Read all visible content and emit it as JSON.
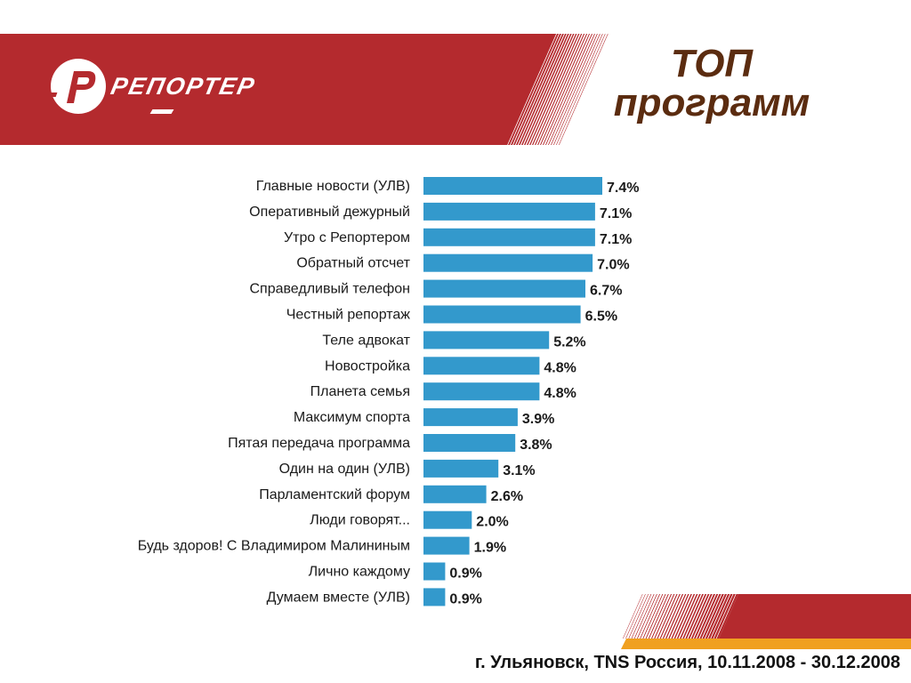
{
  "header": {
    "logo_text": "РЕПОРТЕР",
    "logo_icon": "reporter-r-logo-icon",
    "title_line1": "ТОП",
    "title_line2": "программ"
  },
  "colors": {
    "banner_red": "#b42a2e",
    "bar_blue": "#3399cc",
    "title_brown": "#5b2c10",
    "accent_orange": "#f0a020"
  },
  "chart_data": {
    "type": "bar",
    "orientation": "horizontal",
    "unit": "%",
    "categories": [
      "Главные новости (УЛВ)",
      "Оперативный дежурный",
      "Утро с Репортером",
      "Обратный отсчет",
      "Справедливый телефон",
      "Честный репортаж",
      "Теле адвокат",
      "Новостройка",
      "Планета семья",
      "Максимум спорта",
      "Пятая передача программа",
      "Один на один (УЛВ)",
      "Парламентский форум",
      "Люди говорят...",
      "Будь здоров! С Владимиром Малининым",
      "Лично каждому",
      "Думаем вместе (УЛВ)"
    ],
    "values": [
      7.4,
      7.1,
      7.1,
      7.0,
      6.7,
      6.5,
      5.2,
      4.8,
      4.8,
      3.9,
      3.8,
      3.1,
      2.6,
      2.0,
      1.9,
      0.9,
      0.9
    ],
    "value_labels": [
      "7.4%",
      "7.1%",
      "7.1%",
      "7.0%",
      "6.7%",
      "6.5%",
      "5.2%",
      "4.8%",
      "4.8%",
      "3.9%",
      "3.8%",
      "3.1%",
      "2.6%",
      "2.0%",
      "1.9%",
      "0.9%",
      "0.9%"
    ],
    "xlim": [
      0,
      7.4
    ],
    "grid": false,
    "legend": "none"
  },
  "footer": {
    "text": "г. Ульяновск, TNS Россия, 10.11.2008 - 30.12.2008"
  }
}
